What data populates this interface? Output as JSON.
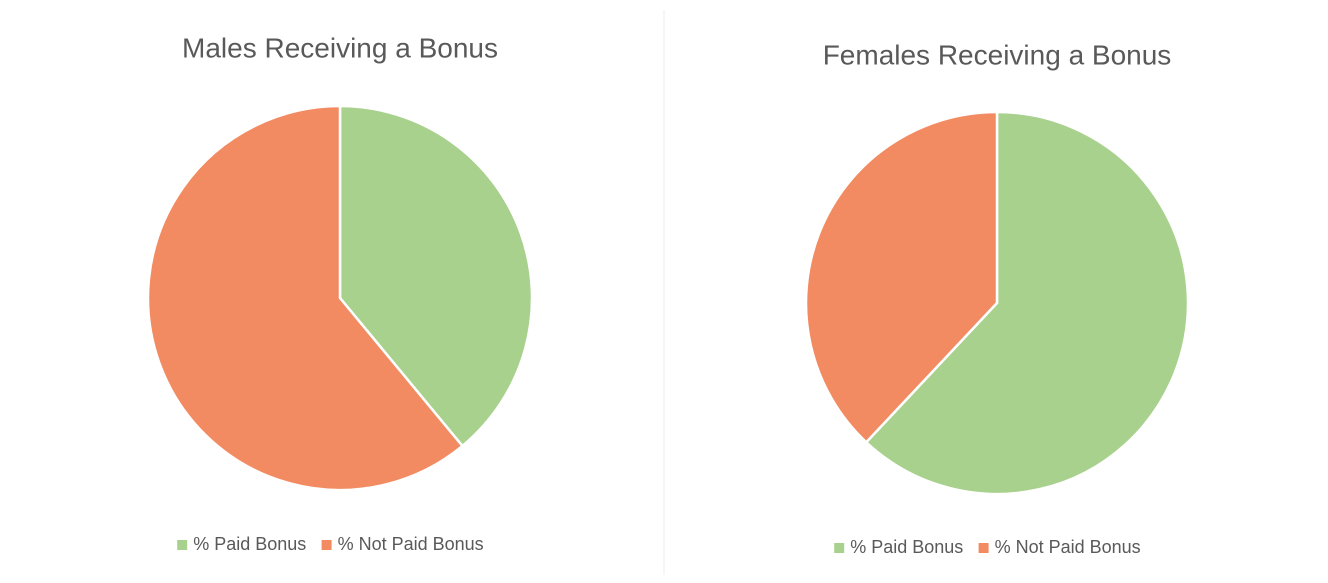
{
  "chart_data": [
    {
      "type": "pie",
      "title": "Males Receiving a Bonus",
      "categories": [
        "% Paid Bonus",
        "% Not Paid Bonus"
      ],
      "values": [
        39,
        61
      ],
      "colors": [
        "#a9d18e",
        "#f28b62"
      ],
      "legend": "bottom"
    },
    {
      "type": "pie",
      "title": "Females Receiving a Bonus",
      "categories": [
        "% Paid Bonus",
        "% Not Paid Bonus"
      ],
      "values": [
        62,
        38
      ],
      "colors": [
        "#a9d18e",
        "#f28b62"
      ],
      "legend": "bottom"
    }
  ]
}
